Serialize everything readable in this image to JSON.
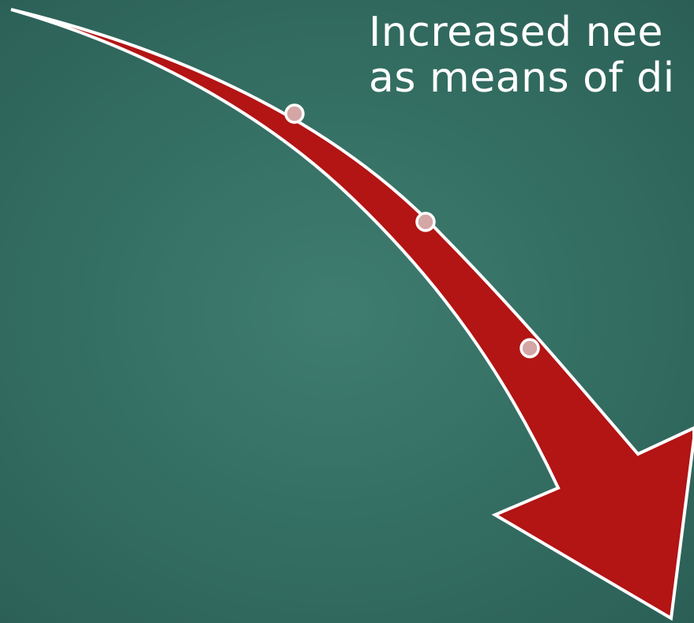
{
  "slide": {
    "caption_lines": [
      "Increased nee",
      "as means of di"
    ],
    "colors": {
      "background": "#357064",
      "arrow_fill": "#b31414",
      "arrow_outline": "#ffffff",
      "dot_fill": "#d4a6a6",
      "text": "#ffffff"
    }
  }
}
